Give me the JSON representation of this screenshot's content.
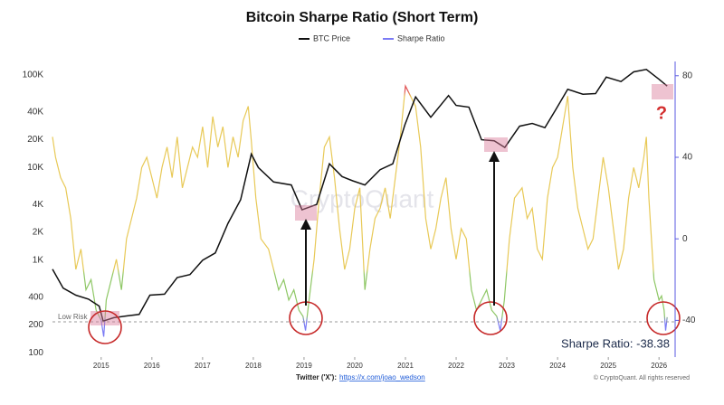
{
  "chart_data": {
    "type": "line",
    "title": "Bitcoin Sharpe Ratio (Short Term)",
    "xlim": [
      2014.04,
      2026.3
    ],
    "xticks": [
      2015,
      2016,
      2017,
      2018,
      2019,
      2020,
      2021,
      2022,
      2023,
      2024,
      2025,
      2026
    ],
    "ylog": true,
    "ylim": [
      90,
      140000
    ],
    "yticks": [
      100,
      200,
      400,
      {
        "value": 1000,
        "label": "1K"
      },
      {
        "value": 2000,
        "label": "2K"
      },
      {
        "value": 4000,
        "label": "4K"
      },
      {
        "value": 10000,
        "label": "10K"
      },
      {
        "value": 20000,
        "label": "20K"
      },
      {
        "value": 40000,
        "label": "40K"
      },
      {
        "value": 100000,
        "label": "100K"
      }
    ],
    "y2lim": [
      -58,
      87
    ],
    "y2ticks": [
      -40,
      0,
      40,
      80
    ],
    "series": [
      {
        "name": "BTC Price",
        "color": "#111111",
        "x": [
          2014.04,
          2014.25,
          2014.5,
          2014.75,
          2014.96,
          2015.04,
          2015.25,
          2015.5,
          2015.75,
          2015.96,
          2016.25,
          2016.5,
          2016.75,
          2017.0,
          2017.25,
          2017.5,
          2017.75,
          2017.96,
          2018.1,
          2018.4,
          2018.75,
          2018.96,
          2019.25,
          2019.5,
          2019.75,
          2019.96,
          2020.2,
          2020.5,
          2020.75,
          2020.99,
          2021.2,
          2021.5,
          2021.85,
          2022.0,
          2022.25,
          2022.5,
          2022.75,
          2022.96,
          2023.25,
          2023.5,
          2023.75,
          2023.96,
          2024.2,
          2024.5,
          2024.75,
          2024.96,
          2025.25,
          2025.5,
          2025.75,
          2026.0,
          2026.16
        ],
        "values": [
          800,
          500,
          420,
          380,
          320,
          220,
          240,
          250,
          260,
          420,
          430,
          650,
          700,
          1000,
          1200,
          2500,
          4500,
          14000,
          10000,
          7000,
          6500,
          3500,
          4000,
          11000,
          8000,
          7200,
          6500,
          9500,
          11000,
          29000,
          58000,
          35000,
          60000,
          47000,
          45000,
          20000,
          19500,
          16500,
          28000,
          30000,
          27000,
          42000,
          70000,
          62000,
          63000,
          95000,
          85000,
          108000,
          115000,
          90000,
          76000
        ]
      },
      {
        "name": "Sharpe Ratio",
        "color": "#7b7bf5",
        "axis": "y2",
        "x": [
          2014.04,
          2014.1,
          2014.2,
          2014.3,
          2014.4,
          2014.5,
          2014.6,
          2014.7,
          2014.8,
          2014.9,
          2015.0,
          2015.05,
          2015.1,
          2015.2,
          2015.3,
          2015.4,
          2015.5,
          2015.6,
          2015.7,
          2015.8,
          2015.9,
          2016.0,
          2016.1,
          2016.2,
          2016.3,
          2016.4,
          2016.5,
          2016.6,
          2016.7,
          2016.8,
          2016.9,
          2017.0,
          2017.1,
          2017.2,
          2017.3,
          2017.4,
          2017.5,
          2017.6,
          2017.7,
          2017.8,
          2017.9,
          2017.96,
          2018.05,
          2018.15,
          2018.3,
          2018.4,
          2018.5,
          2018.6,
          2018.7,
          2018.8,
          2018.9,
          2018.98,
          2019.03,
          2019.1,
          2019.2,
          2019.3,
          2019.4,
          2019.5,
          2019.6,
          2019.7,
          2019.8,
          2019.9,
          2020.0,
          2020.1,
          2020.2,
          2020.3,
          2020.4,
          2020.5,
          2020.6,
          2020.7,
          2020.8,
          2020.9,
          2021.0,
          2021.1,
          2021.2,
          2021.3,
          2021.4,
          2021.5,
          2021.6,
          2021.7,
          2021.8,
          2021.9,
          2022.0,
          2022.1,
          2022.2,
          2022.3,
          2022.4,
          2022.5,
          2022.6,
          2022.7,
          2022.8,
          2022.87,
          2022.95,
          2023.05,
          2023.15,
          2023.3,
          2023.4,
          2023.5,
          2023.6,
          2023.7,
          2023.8,
          2023.9,
          2024.0,
          2024.1,
          2024.2,
          2024.3,
          2024.4,
          2024.5,
          2024.6,
          2024.7,
          2024.8,
          2024.9,
          2025.0,
          2025.1,
          2025.2,
          2025.3,
          2025.4,
          2025.5,
          2025.6,
          2025.7,
          2025.75,
          2025.8,
          2025.85,
          2025.9,
          2025.95,
          2026.0,
          2026.05,
          2026.1,
          2026.13,
          2026.16
        ],
        "values": [
          50,
          40,
          30,
          25,
          10,
          -15,
          -5,
          -25,
          -20,
          -35,
          -40,
          -48,
          -30,
          -20,
          -10,
          -25,
          0,
          10,
          20,
          35,
          40,
          30,
          20,
          35,
          45,
          30,
          50,
          25,
          35,
          45,
          40,
          55,
          35,
          60,
          45,
          55,
          35,
          50,
          40,
          58,
          65,
          48,
          20,
          0,
          -5,
          -15,
          -25,
          -20,
          -30,
          -25,
          -35,
          -38,
          -45,
          -30,
          -10,
          20,
          45,
          50,
          30,
          5,
          -15,
          -5,
          15,
          25,
          -25,
          -5,
          10,
          15,
          25,
          10,
          30,
          50,
          75,
          70,
          65,
          45,
          10,
          -5,
          5,
          20,
          30,
          5,
          -10,
          5,
          0,
          -25,
          -35,
          -30,
          -25,
          -35,
          -38,
          -45,
          -30,
          0,
          20,
          25,
          10,
          15,
          -5,
          -10,
          20,
          35,
          40,
          55,
          70,
          35,
          15,
          5,
          -5,
          0,
          20,
          40,
          25,
          5,
          -15,
          -5,
          20,
          35,
          25,
          40,
          50,
          20,
          0,
          -20,
          -25,
          -30,
          -28,
          -35,
          -45,
          -38.38
        ]
      }
    ],
    "annotations": {
      "low_risk": "Low Risk",
      "question": "?",
      "current": "Sharpe Ratio: -38.38",
      "watermark": "CryptoQuant",
      "twitter": "Twitter ('X'):",
      "link": "https://x.com/joao_wedson",
      "copyright": "© CryptoQuant. All rights reserved"
    }
  }
}
